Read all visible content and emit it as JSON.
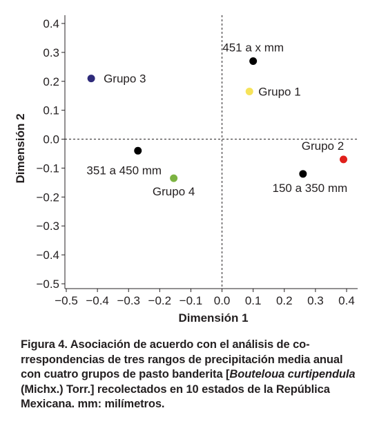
{
  "chart_data": {
    "type": "scatter",
    "xlabel": "Dimensión 1",
    "ylabel": "Dimensión 2",
    "xlim": [
      -0.5,
      0.4
    ],
    "ylim": [
      -0.5,
      0.4
    ],
    "xticks": [
      "−0.5",
      "−0.4",
      "−0.3",
      "−0.2",
      "−0.1",
      "0.0",
      "0.1",
      "0.2",
      "0.3",
      "0.4"
    ],
    "yticks": [
      "0.4",
      "0.3",
      "0.2",
      "0.1",
      "0.0",
      "−0.1",
      "−0.2",
      "−0.3",
      "−0.4",
      "−0.5"
    ],
    "points": [
      {
        "label": "451 a x mm",
        "x": 0.1,
        "y": 0.27,
        "color": "#000000"
      },
      {
        "label": "Grupo 1",
        "x": 0.088,
        "y": 0.165,
        "color": "#f6e35a"
      },
      {
        "label": "Grupo 3",
        "x": -0.42,
        "y": 0.21,
        "color": "#2e2a7a"
      },
      {
        "label": "351 a 450 mm",
        "x": -0.27,
        "y": -0.04,
        "color": "#000000"
      },
      {
        "label": "Grupo 4",
        "x": -0.155,
        "y": -0.135,
        "color": "#7cb342"
      },
      {
        "label": "Grupo 2",
        "x": 0.39,
        "y": -0.07,
        "color": "#e0201b"
      },
      {
        "label": "150 a 350 mm",
        "x": 0.26,
        "y": -0.12,
        "color": "#000000"
      }
    ]
  },
  "caption": {
    "p1": "Figura 4. Asociación de acuerdo con el análisis de co-rrespondencias de tres rangos de precipitación media anual con cuatro grupos de pasto banderita [",
    "italic1": "Bouteloua curtipendula",
    "p2": " (Michx.) Torr.] recolectados en 10 estados de la República Mexicana. mm: milímetros."
  }
}
